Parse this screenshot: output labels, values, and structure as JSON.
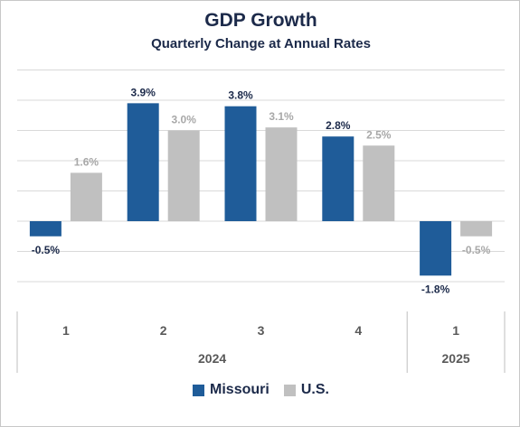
{
  "chart_data": {
    "type": "bar",
    "title": "GDP Growth",
    "subtitle": "Quarterly Change at Annual Rates",
    "categories": [
      "1",
      "2",
      "3",
      "4",
      "1"
    ],
    "year_groups": [
      {
        "label": "2024",
        "count": 4
      },
      {
        "label": "2025",
        "count": 1
      }
    ],
    "series": [
      {
        "name": "Missouri",
        "color": "#1f5c99",
        "values": [
          -0.5,
          3.9,
          3.8,
          2.8,
          -1.8
        ],
        "labels": [
          "-0.5%",
          "3.9%",
          "3.8%",
          "2.8%",
          "-1.8%"
        ],
        "label_color": "#1c2a4a"
      },
      {
        "name": "U.S.",
        "color": "#c0c0c0",
        "values": [
          1.6,
          3.0,
          3.1,
          2.5,
          -0.5
        ],
        "labels": [
          "1.6%",
          "3.0%",
          "3.1%",
          "2.5%",
          "-0.5%"
        ],
        "label_color": "#a8a8a8"
      }
    ],
    "ylim": [
      -2,
      5
    ],
    "gridline_step": 1,
    "grid": true,
    "legend_position": "bottom"
  }
}
